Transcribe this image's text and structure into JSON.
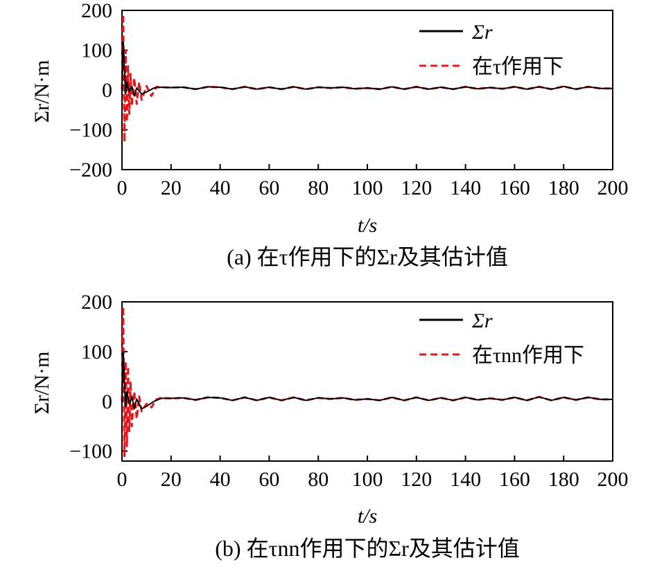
{
  "chart_data": [
    {
      "type": "line",
      "caption": "(a) 在τ作用下的Σr及其估计值",
      "xlabel": "t/s",
      "ylabel": "Σr/N·m",
      "xlim": [
        0,
        200
      ],
      "ylim": [
        -200,
        200
      ],
      "xticks": [
        "0",
        "20",
        "40",
        "60",
        "80",
        "100",
        "120",
        "140",
        "160",
        "180",
        "200"
      ],
      "yticks": [
        "200",
        "100",
        "0",
        "−100",
        "−200"
      ],
      "grid": false,
      "legend_position": "top-right",
      "series": [
        {
          "name": "Σr",
          "color": "#000000",
          "style": "solid",
          "x": [
            0,
            0.5,
            1,
            1.5,
            2,
            3,
            4,
            5,
            6,
            8,
            10,
            13,
            16,
            20,
            25,
            30,
            35,
            40,
            45,
            50,
            55,
            60,
            65,
            70,
            75,
            80,
            85,
            90,
            95,
            100,
            105,
            110,
            115,
            120,
            125,
            130,
            135,
            140,
            145,
            150,
            155,
            160,
            165,
            170,
            175,
            180,
            185,
            190,
            195,
            200
          ],
          "y": [
            0,
            120,
            60,
            -10,
            20,
            -5,
            10,
            -15,
            5,
            -10,
            -5,
            5,
            7,
            6,
            7,
            2,
            8,
            7,
            2,
            8,
            2,
            7,
            2,
            8,
            2,
            7,
            5,
            7,
            3,
            5,
            2,
            8,
            2,
            8,
            2,
            7,
            2,
            8,
            3,
            6,
            3,
            8,
            2,
            8,
            2,
            9,
            2,
            8,
            4,
            4
          ]
        },
        {
          "name": "在τ作用下",
          "color": "#e8151b",
          "style": "dashed",
          "x": [
            0,
            0.5,
            1,
            1.5,
            2,
            2.5,
            3,
            3.5,
            4,
            5,
            6,
            7,
            8,
            10,
            12,
            14,
            16,
            20,
            25,
            30,
            35,
            40,
            45,
            50,
            55,
            60,
            65,
            70,
            75,
            80,
            85,
            90,
            95,
            100,
            105,
            110,
            115,
            120,
            125,
            130,
            135,
            140,
            145,
            150,
            155,
            160,
            165,
            170,
            175,
            180,
            185,
            190,
            195,
            200
          ],
          "y": [
            0,
            190,
            -130,
            100,
            -80,
            60,
            -60,
            40,
            -40,
            30,
            -35,
            20,
            -25,
            10,
            -15,
            8,
            7,
            6,
            7,
            2,
            8,
            7,
            2,
            8,
            2,
            7,
            2,
            8,
            2,
            7,
            5,
            7,
            3,
            5,
            2,
            8,
            2,
            8,
            2,
            7,
            2,
            8,
            3,
            6,
            3,
            8,
            2,
            8,
            2,
            9,
            2,
            8,
            4,
            4
          ]
        }
      ]
    },
    {
      "type": "line",
      "caption": "(b) 在τnn作用下的Σr及其估计值",
      "xlabel": "t/s",
      "ylabel": "Σr/N·m",
      "xlim": [
        0,
        200
      ],
      "ylim": [
        -120,
        200
      ],
      "xticks": [
        "0",
        "20",
        "40",
        "60",
        "80",
        "100",
        "120",
        "140",
        "160",
        "180",
        "200"
      ],
      "yticks": [
        "200",
        "100",
        "0",
        "−100"
      ],
      "grid": false,
      "legend_position": "top-right",
      "series": [
        {
          "name": "Σr",
          "color": "#000000",
          "style": "solid",
          "x": [
            0,
            0.5,
            1,
            1.5,
            2,
            3,
            4,
            5,
            6,
            8,
            10,
            13,
            16,
            20,
            25,
            30,
            35,
            40,
            45,
            50,
            55,
            60,
            65,
            70,
            75,
            80,
            85,
            90,
            95,
            100,
            105,
            110,
            115,
            120,
            125,
            130,
            135,
            140,
            145,
            150,
            155,
            160,
            165,
            170,
            175,
            180,
            185,
            190,
            195,
            200
          ],
          "y": [
            0,
            100,
            40,
            -10,
            20,
            -5,
            10,
            -15,
            5,
            -15,
            -10,
            0,
            6,
            6,
            7,
            3,
            8,
            7,
            2,
            8,
            2,
            8,
            2,
            8,
            2,
            7,
            5,
            7,
            3,
            5,
            2,
            8,
            2,
            8,
            2,
            7,
            2,
            8,
            3,
            6,
            3,
            8,
            2,
            9,
            2,
            8,
            3,
            8,
            4,
            4
          ]
        },
        {
          "name": "在τnn作用下",
          "color": "#e8151b",
          "style": "dashed",
          "x": [
            0,
            0.5,
            1,
            1.5,
            2,
            2.5,
            3,
            3.5,
            4,
            5,
            6,
            7,
            8,
            10,
            12,
            14,
            16,
            20,
            25,
            30,
            35,
            40,
            45,
            50,
            55,
            60,
            65,
            70,
            75,
            80,
            85,
            90,
            95,
            100,
            105,
            110,
            115,
            120,
            125,
            130,
            135,
            140,
            145,
            150,
            155,
            160,
            165,
            170,
            175,
            180,
            185,
            190,
            195,
            200
          ],
          "y": [
            0,
            190,
            -110,
            80,
            -90,
            70,
            -60,
            40,
            -50,
            20,
            -35,
            10,
            -20,
            -5,
            -12,
            4,
            7,
            6,
            7,
            3,
            8,
            7,
            2,
            8,
            2,
            8,
            2,
            8,
            2,
            7,
            5,
            7,
            3,
            5,
            2,
            8,
            2,
            8,
            2,
            7,
            2,
            8,
            3,
            6,
            3,
            8,
            2,
            9,
            2,
            8,
            3,
            8,
            4,
            4
          ]
        }
      ]
    }
  ]
}
